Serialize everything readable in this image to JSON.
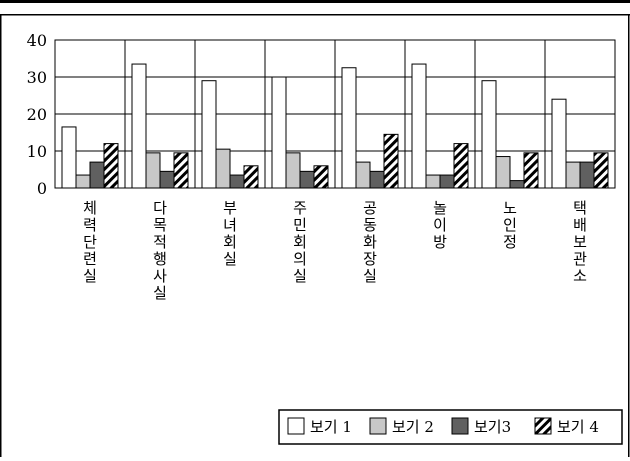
{
  "chart_data": {
    "type": "bar",
    "categories": [
      "체력단련실",
      "다목적행사실",
      "부녀회실",
      "주민회의실",
      "공동화장실",
      "놀이방",
      "노인정",
      "택배보관소"
    ],
    "series": [
      {
        "name": "보기 1",
        "values": [
          16.5,
          33.5,
          29,
          30,
          32.5,
          33.5,
          29,
          24
        ]
      },
      {
        "name": "보기 2",
        "values": [
          3.5,
          9.5,
          10.5,
          9.5,
          7,
          3.5,
          8.5,
          7
        ]
      },
      {
        "name": "보기3",
        "values": [
          7,
          4.5,
          3.5,
          4.5,
          4.5,
          3.5,
          2,
          7
        ]
      },
      {
        "name": "보기 4",
        "values": [
          12,
          9.5,
          6,
          6,
          14.5,
          12,
          9.5,
          9.5
        ]
      }
    ],
    "yticks": [
      "0",
      "10",
      "20",
      "30",
      "40"
    ],
    "ylim": [
      0,
      40
    ],
    "grid": true,
    "legend_position": "bottom-right",
    "series_styles": [
      {
        "fill": "#ffffff",
        "pattern": "none"
      },
      {
        "fill": "#c8c8c8",
        "pattern": "none"
      },
      {
        "fill": "#606060",
        "pattern": "none"
      },
      {
        "fill": "#ffffff",
        "pattern": "diagonal-stripes"
      }
    ],
    "colors": {
      "stroke": "#000000",
      "background": "#ffffff",
      "grid": "#000000"
    }
  }
}
